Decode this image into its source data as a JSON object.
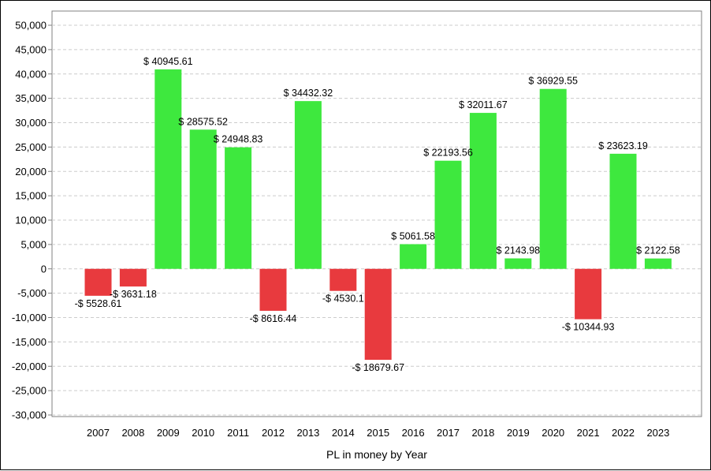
{
  "chart_data": {
    "type": "bar",
    "title": "",
    "xlabel": "PL in money by Year",
    "ylabel": "",
    "ylim": [
      -30000,
      50000
    ],
    "yticks": [
      50000,
      45000,
      40000,
      35000,
      30000,
      25000,
      20000,
      15000,
      10000,
      5000,
      0,
      -5000,
      -10000,
      -15000,
      -20000,
      -25000,
      -30000
    ],
    "ytick_labels": [
      "50,000",
      "45,000",
      "40,000",
      "35,000",
      "30,000",
      "25,000",
      "20,000",
      "15,000",
      "10,000",
      "5,000",
      "0",
      "-5,000",
      "-10,000",
      "-15,000",
      "-20,000",
      "-25,000",
      "-30,000"
    ],
    "grid": true,
    "legend": "none",
    "colors": {
      "positive": "#3ee83e",
      "negative": "#e83a3e",
      "grid": "#cccccc",
      "axis": "#808080"
    },
    "categories": [
      "2007",
      "2008",
      "2009",
      "2010",
      "2011",
      "2012",
      "2013",
      "2014",
      "2015",
      "2016",
      "2017",
      "2018",
      "2019",
      "2020",
      "2021",
      "2022",
      "2023"
    ],
    "values": [
      -5528.61,
      -3631.18,
      40945.61,
      28575.52,
      24948.83,
      -8616.44,
      34432.32,
      -4530.1,
      -18679.67,
      5061.58,
      22193.56,
      32011.67,
      2143.98,
      36929.55,
      -10344.93,
      23623.19,
      2122.58
    ],
    "data_labels": [
      "-$ 5528.61",
      "-$ 3631.18",
      "$ 40945.61",
      "$ 28575.52",
      "$ 24948.83",
      "-$ 8616.44",
      "$ 34432.32",
      "-$ 4530.1",
      "-$ 18679.67",
      "$ 5061.58",
      "$ 22193.56",
      "$ 32011.67",
      "$ 2143.98",
      "$ 36929.55",
      "-$ 10344.93",
      "$ 23623.19",
      "$ 2122.58"
    ]
  }
}
